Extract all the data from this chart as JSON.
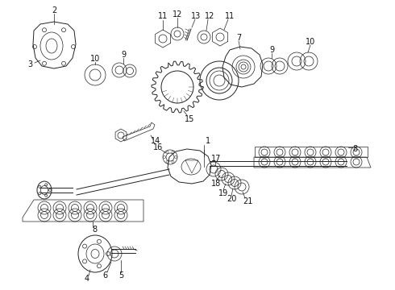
{
  "background_color": "#ffffff",
  "line_color": "#222222",
  "label_color": "#111111",
  "label_fontsize": 7,
  "fig_width": 4.9,
  "fig_height": 3.6,
  "dpi": 100
}
